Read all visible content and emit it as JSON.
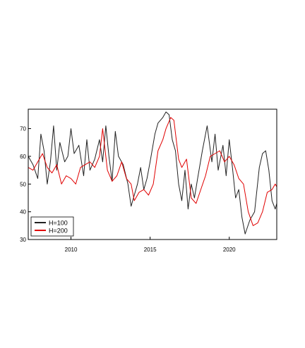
{
  "chart_data": {
    "type": "line",
    "title": "",
    "xlabel": "",
    "ylabel": "",
    "xlim": [
      2007.3,
      2023.0
    ],
    "ylim": [
      30,
      77
    ],
    "x_ticks": [
      {
        "value": 2010,
        "label": "2010"
      },
      {
        "value": 2015,
        "label": "2015"
      },
      {
        "value": 2020,
        "label": "2020"
      }
    ],
    "y_ticks": [
      {
        "value": 30,
        "label": "30"
      },
      {
        "value": 40,
        "label": "40"
      },
      {
        "value": 50,
        "label": "50"
      },
      {
        "value": 60,
        "label": "60"
      },
      {
        "value": 70,
        "label": "70"
      }
    ],
    "grid": false,
    "legend_position": "bottom-left",
    "colors": {
      "H=100": "#222222",
      "H=200": "#e00000"
    },
    "series": [
      {
        "name": "H=100",
        "color": "#222222",
        "x": [
          2007.3,
          2007.6,
          2007.9,
          2008.1,
          2008.3,
          2008.5,
          2008.7,
          2008.9,
          2009.1,
          2009.3,
          2009.6,
          2009.8,
          2010.0,
          2010.2,
          2010.5,
          2010.8,
          2011.0,
          2011.2,
          2011.5,
          2011.8,
          2012.0,
          2012.2,
          2012.4,
          2012.6,
          2012.8,
          2013.0,
          2013.3,
          2013.6,
          2013.8,
          2014.0,
          2014.2,
          2014.4,
          2014.6,
          2014.8,
          2015.0,
          2015.3,
          2015.5,
          2015.8,
          2016.0,
          2016.2,
          2016.4,
          2016.6,
          2016.8,
          2017.0,
          2017.2,
          2017.4,
          2017.6,
          2017.8,
          2018.0,
          2018.3,
          2018.6,
          2018.9,
          2019.1,
          2019.3,
          2019.6,
          2019.8,
          2020.0,
          2020.2,
          2020.4,
          2020.6,
          2020.8,
          2021.0,
          2021.3,
          2021.6,
          2021.9,
          2022.1,
          2022.3,
          2022.5,
          2022.7,
          2022.9,
          2023.0
        ],
        "values": [
          60,
          57,
          52,
          68,
          62,
          50,
          58,
          71,
          55,
          65,
          58,
          60,
          70,
          61,
          64,
          53,
          66,
          55,
          59,
          66,
          58,
          71,
          60,
          51,
          69,
          60,
          57,
          50,
          42,
          46,
          50,
          56,
          48,
          52,
          58,
          68,
          72,
          74,
          76,
          75,
          66,
          62,
          50,
          44,
          55,
          41,
          50,
          45,
          52,
          62,
          71,
          58,
          68,
          55,
          64,
          53,
          66,
          56,
          45,
          48,
          38,
          32,
          37,
          40,
          56,
          61,
          62,
          55,
          44,
          41,
          43
        ]
      },
      {
        "name": "H=200",
        "color": "#e00000",
        "x": [
          2007.3,
          2007.6,
          2007.9,
          2008.2,
          2008.5,
          2008.8,
          2009.1,
          2009.4,
          2009.7,
          2010.0,
          2010.3,
          2010.6,
          2010.9,
          2011.2,
          2011.5,
          2011.8,
          2012.0,
          2012.3,
          2012.6,
          2012.9,
          2013.2,
          2013.5,
          2013.8,
          2014.0,
          2014.3,
          2014.6,
          2014.9,
          2015.2,
          2015.5,
          2015.8,
          2016.0,
          2016.3,
          2016.5,
          2016.8,
          2017.0,
          2017.3,
          2017.6,
          2017.9,
          2018.2,
          2018.5,
          2018.8,
          2019.1,
          2019.4,
          2019.7,
          2020.0,
          2020.3,
          2020.6,
          2020.9,
          2021.2,
          2021.5,
          2021.8,
          2022.1,
          2022.4,
          2022.7,
          2022.9,
          2023.0
        ],
        "values": [
          56,
          55,
          58,
          61,
          56,
          54,
          57,
          50,
          53,
          52,
          50,
          56,
          57,
          58,
          56,
          60,
          70,
          55,
          51,
          53,
          58,
          52,
          50,
          44,
          47,
          48,
          46,
          50,
          62,
          66,
          70,
          74,
          73,
          59,
          56,
          59,
          45,
          43,
          48,
          53,
          60,
          61,
          62,
          58,
          60,
          57,
          52,
          50,
          40,
          35,
          36,
          40,
          47,
          48,
          50,
          49
        ]
      }
    ]
  }
}
